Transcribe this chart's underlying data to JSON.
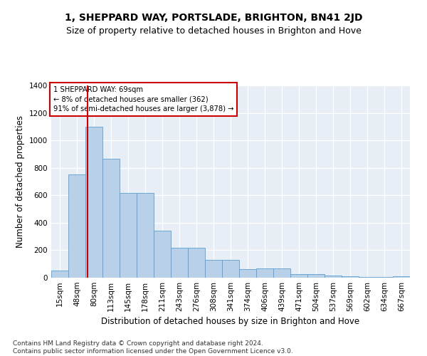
{
  "title": "1, SHEPPARD WAY, PORTSLADE, BRIGHTON, BN41 2JD",
  "subtitle": "Size of property relative to detached houses in Brighton and Hove",
  "xlabel": "Distribution of detached houses by size in Brighton and Hove",
  "ylabel": "Number of detached properties",
  "bin_labels": [
    "15sqm",
    "48sqm",
    "80sqm",
    "113sqm",
    "145sqm",
    "178sqm",
    "211sqm",
    "243sqm",
    "276sqm",
    "308sqm",
    "341sqm",
    "374sqm",
    "406sqm",
    "439sqm",
    "471sqm",
    "504sqm",
    "537sqm",
    "569sqm",
    "602sqm",
    "634sqm",
    "667sqm"
  ],
  "bar_values": [
    50,
    750,
    1100,
    865,
    615,
    615,
    340,
    220,
    220,
    130,
    130,
    60,
    65,
    65,
    25,
    25,
    15,
    10,
    5,
    5,
    10
  ],
  "bar_color": "#b8d0e8",
  "bar_edge_color": "#5a9fd4",
  "property_line_x": 1.64,
  "property_line_color": "#cc0000",
  "annotation_text": "1 SHEPPARD WAY: 69sqm\n← 8% of detached houses are smaller (362)\n91% of semi-detached houses are larger (3,878) →",
  "annotation_box_color": "#cc0000",
  "ylim": [
    0,
    1400
  ],
  "yticks": [
    0,
    200,
    400,
    600,
    800,
    1000,
    1200,
    1400
  ],
  "bg_color": "#e8eef5",
  "footer": "Contains HM Land Registry data © Crown copyright and database right 2024.\nContains public sector information licensed under the Open Government Licence v3.0.",
  "title_fontsize": 10,
  "subtitle_fontsize": 9,
  "xlabel_fontsize": 8.5,
  "ylabel_fontsize": 8.5,
  "tick_fontsize": 7.5,
  "footer_fontsize": 6.5
}
